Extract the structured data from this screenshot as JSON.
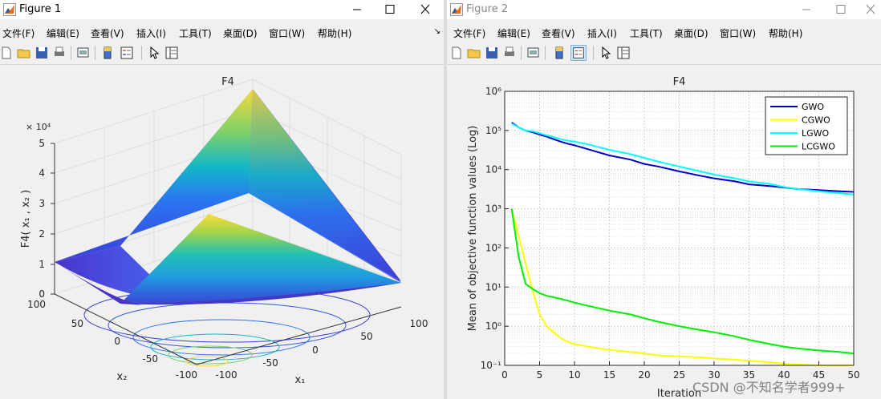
{
  "figure1": {
    "title": "Figure 1",
    "menu": [
      "文件(F)",
      "编辑(E)",
      "查看(V)",
      "插入(I)",
      "工具(T)",
      "桌面(D)",
      "窗口(W)",
      "帮助(H)"
    ],
    "plot": {
      "title": "F4",
      "zlabel": "F4( x₁ , x₂ )",
      "xlabel": "x₁",
      "ylabel": "x₂",
      "exponent": "× 10⁴",
      "zticks": [
        "0",
        "1",
        "2",
        "3",
        "4",
        "5"
      ],
      "x1_ticks": [
        "-100",
        "-50",
        "0",
        "50",
        "100"
      ],
      "x2_ticks": [
        "100",
        "50",
        "0",
        "-50",
        "-100"
      ]
    }
  },
  "figure2": {
    "title": "Figure 2",
    "menu": [
      "文件(F)",
      "编辑(E)",
      "查看(V)",
      "插入(I)",
      "工具(T)",
      "桌面(D)",
      "窗口(W)",
      "帮助(H)"
    ]
  },
  "colors": {
    "GWO": "#0000cc",
    "CGWO": "#ffff00",
    "LGWO": "#00ffff",
    "LCGWO": "#00ee00"
  },
  "chart_data": {
    "type": "line",
    "title": "F4",
    "xlabel": "Iteration",
    "ylabel": "Mean of objective function values (Log)",
    "xlim": [
      0,
      50
    ],
    "ylim": [
      0.1,
      1000000
    ],
    "yscale": "log",
    "grid": true,
    "legend_position": "top-right",
    "xticks": [
      "0",
      "5",
      "10",
      "15",
      "20",
      "25",
      "30",
      "35",
      "40",
      "45",
      "50"
    ],
    "yticks": [
      "10⁻¹",
      "10⁰",
      "10¹",
      "10²",
      "10³",
      "10⁴",
      "10⁵",
      "10⁶"
    ],
    "x": [
      1,
      2,
      3,
      4,
      5,
      6,
      7,
      8,
      9,
      10,
      12,
      15,
      18,
      20,
      22,
      25,
      28,
      30,
      33,
      35,
      38,
      40,
      42,
      45,
      48,
      50
    ],
    "series": [
      {
        "name": "GWO",
        "values": [
          160000,
          120000,
          100000,
          90000,
          78000,
          70000,
          60000,
          52000,
          46000,
          42000,
          33000,
          23000,
          18000,
          14000,
          12000,
          9000,
          7000,
          6000,
          5000,
          4200,
          3800,
          3500,
          3200,
          3000,
          2800,
          2700
        ]
      },
      {
        "name": "CGWO",
        "values": [
          1000,
          200,
          40,
          8,
          2,
          1,
          0.7,
          0.5,
          0.4,
          0.35,
          0.3,
          0.25,
          0.22,
          0.2,
          0.18,
          0.17,
          0.16,
          0.15,
          0.14,
          0.13,
          0.12,
          0.11,
          0.105,
          0.1,
          0.1,
          0.1
        ]
      },
      {
        "name": "LGWO",
        "values": [
          150000,
          120000,
          100000,
          95000,
          85000,
          75000,
          68000,
          60000,
          55000,
          52000,
          44000,
          32000,
          25000,
          20000,
          16000,
          12000,
          9000,
          7500,
          6000,
          5000,
          4300,
          3600,
          3200,
          2800,
          2500,
          2300
        ]
      },
      {
        "name": "LCGWO",
        "values": [
          1000,
          60,
          12,
          9,
          7,
          6,
          5.5,
          5,
          4.5,
          4,
          3.3,
          2.5,
          2,
          1.6,
          1.3,
          1,
          0.8,
          0.7,
          0.55,
          0.45,
          0.35,
          0.3,
          0.27,
          0.24,
          0.22,
          0.2
        ]
      }
    ]
  },
  "watermark": "CSDN @不知名学者999+"
}
